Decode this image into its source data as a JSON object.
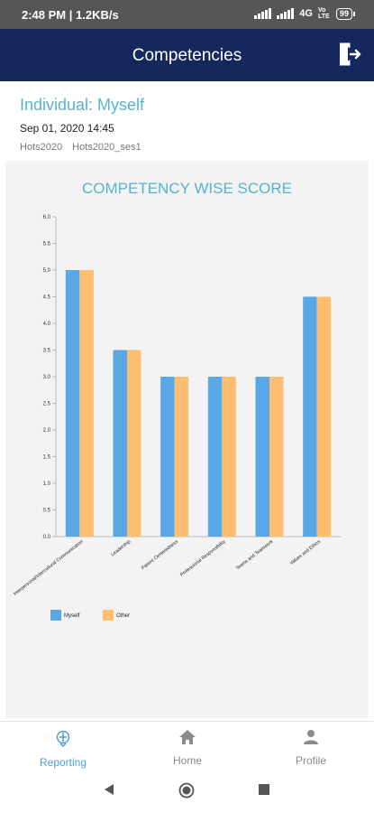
{
  "status_bar": {
    "time": "2:48 PM | 1.2KB/s",
    "network": "4G",
    "volte": "Vo LTE",
    "battery": "99"
  },
  "app_bar": {
    "title": "Competencies"
  },
  "header": {
    "individual": "Individual: Myself",
    "datetime": "Sep 01, 2020 14:45",
    "tags": [
      "Hots2020",
      "Hots2020_ses1"
    ]
  },
  "chart_data": {
    "type": "bar",
    "title": "COMPETENCY WISE SCORE",
    "categories": [
      "Interpersonal/Intercultural Communication",
      "Leadership",
      "Patient Centeredness",
      "Professional Responsibility",
      "Teams and Teamwork",
      "Values and Ethics"
    ],
    "series": [
      {
        "name": "Myself",
        "values": [
          5.0,
          3.5,
          3.0,
          3.0,
          3.0,
          4.5
        ],
        "color": "#5aa7e6"
      },
      {
        "name": "Other",
        "values": [
          5.0,
          3.5,
          3.0,
          3.0,
          3.0,
          4.5
        ],
        "color": "#fdbf6f"
      }
    ],
    "y_ticks": [
      "0.0",
      "0.5",
      "1.0",
      "1.5",
      "2.0",
      "2.5",
      "3.0",
      "3.5",
      "4.0",
      "4.5",
      "5.0",
      "5.5",
      "6.0"
    ],
    "ylim": [
      0,
      6
    ],
    "grid": false,
    "legend_position": "bottom-left"
  },
  "bottom_nav": {
    "items": [
      {
        "label": "Reporting",
        "icon": "reporting-icon",
        "active": true
      },
      {
        "label": "Home",
        "icon": "home-icon",
        "active": false
      },
      {
        "label": "Profile",
        "icon": "profile-icon",
        "active": false
      }
    ]
  },
  "system_nav": {
    "back": "back-icon",
    "home": "home-circle-icon",
    "recents": "recents-icon"
  }
}
